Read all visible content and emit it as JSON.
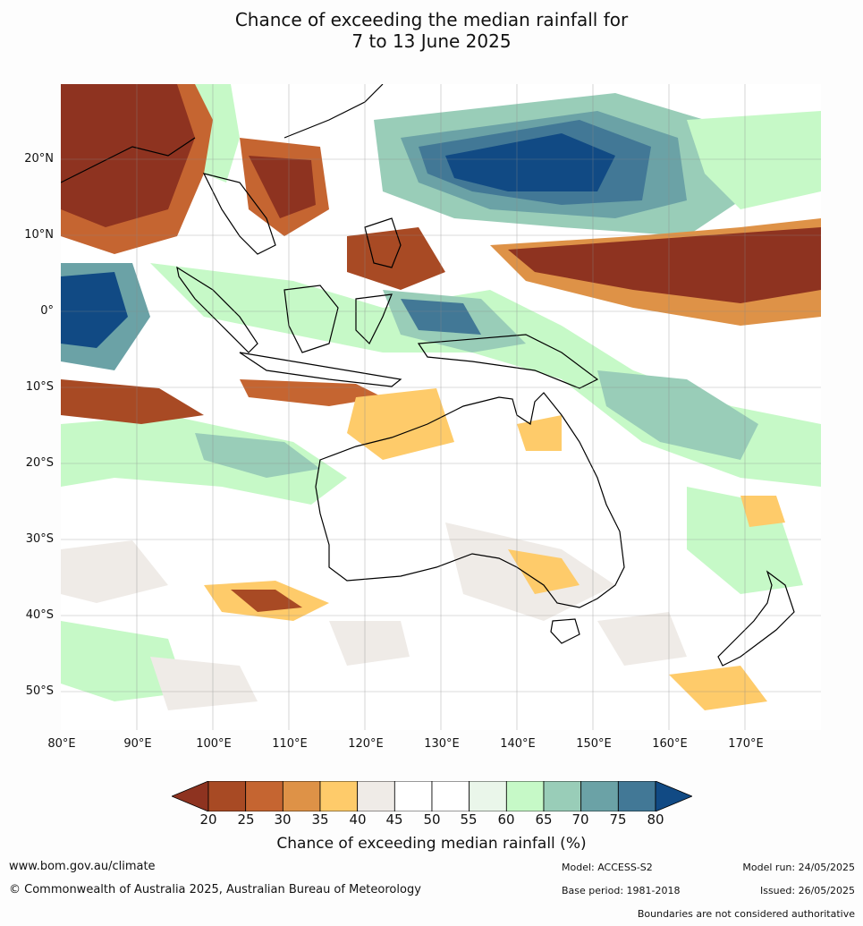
{
  "title_line1": "Chance of exceeding the median rainfall for",
  "title_line2": "7 to 13 June 2025",
  "lat_labels": [
    "20°N",
    "10°N",
    "0°",
    "10°S",
    "20°S",
    "30°S",
    "40°S",
    "50°S"
  ],
  "lon_labels": [
    "80°E",
    "90°E",
    "100°E",
    "110°E",
    "120°E",
    "130°E",
    "140°E",
    "150°E",
    "160°E",
    "170°E"
  ],
  "colorbar": {
    "ticks": [
      "20",
      "25",
      "30",
      "35",
      "40",
      "45",
      "50",
      "55",
      "60",
      "65",
      "70",
      "75",
      "80"
    ],
    "colors": [
      "#8e3320",
      "#a84a24",
      "#c56531",
      "#de9247",
      "#fecb6a",
      "#efebe7",
      "#ffffff",
      "#ffffff",
      "#eaf6ea",
      "#c6f9c7",
      "#99cdb8",
      "#6ba2a6",
      "#427896",
      "#114a84"
    ],
    "label": "Chance of exceeding median rainfall (%)"
  },
  "footer": {
    "website": "www.bom.gov.au/climate",
    "copyright": "© Commonwealth of Australia 2025, Australian Bureau of Meteorology",
    "model": "Model: ACCESS-S2",
    "base_period": "Base period: 1981-2018",
    "model_run": "Model run: 24/05/2025",
    "issued": "Issued: 26/05/2025",
    "disclaimer": "Boundaries are not considered authoritative"
  }
}
